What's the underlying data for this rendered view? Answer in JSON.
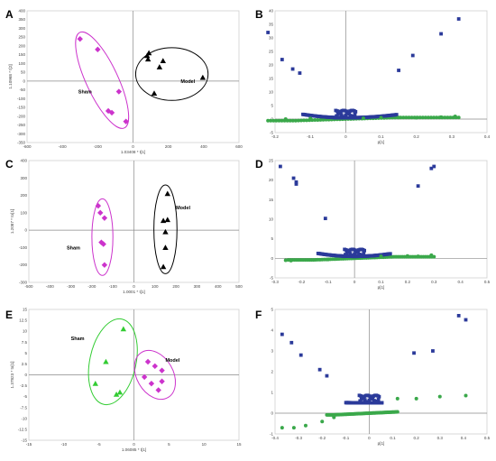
{
  "chart_data": [
    {
      "panel": "A",
      "type": "scatter",
      "xlabel": "1.03408 * t[1]",
      "ylabel": "1.10968 * t[2]",
      "xlim": [
        -600,
        600
      ],
      "ylim": [
        -350,
        400
      ],
      "xticks": [
        -600,
        -400,
        -200,
        0,
        200,
        400,
        600
      ],
      "yticks": [
        -350,
        -300,
        -250,
        -200,
        -150,
        -100,
        -50,
        0,
        50,
        100,
        150,
        200,
        250,
        300,
        350,
        400
      ],
      "groups": [
        {
          "label": "Sham",
          "marker": "diamond",
          "color": "#cc33cc",
          "points": [
            [
              -300,
              240
            ],
            [
              -200,
              180
            ],
            [
              -140,
              -170
            ],
            [
              -120,
              -180
            ],
            [
              -80,
              -60
            ],
            [
              -40,
              -230
            ]
          ],
          "label_at": [
            -310,
            -70
          ],
          "ellipse": {
            "cx": -175,
            "cy": 5,
            "rx": 90,
            "ry": 300,
            "rot": -25
          }
        },
        {
          "label": "Model",
          "marker": "triangle",
          "color": "#000000",
          "points": [
            [
              80,
              145
            ],
            [
              85,
              125
            ],
            [
              90,
              160
            ],
            [
              150,
              80
            ],
            [
              170,
              115
            ],
            [
              120,
              -70
            ],
            [
              395,
              20
            ]
          ],
          "label_at": [
            270,
            -10
          ],
          "ellipse": {
            "cx": 220,
            "cy": 40,
            "rx": 205,
            "ry": 150,
            "rot": 0
          }
        }
      ]
    },
    {
      "panel": "B",
      "type": "scatter",
      "xlabel": "p[1]",
      "ylabel": "",
      "xlim": [
        -0.2,
        0.4
      ],
      "ylim": [
        -5,
        40
      ],
      "xticks": [
        -0.2,
        -0.1,
        0,
        0.1,
        0.2,
        0.3,
        0.4
      ],
      "yticks": [
        -5,
        0,
        5,
        10,
        15,
        20,
        25,
        30,
        35,
        40
      ],
      "vshape": {
        "y0": 0.5,
        "left_k": 85,
        "right_k": 55,
        "max_left": -0.22,
        "max_right": 0.32
      },
      "series_extra": [
        {
          "name": "blue",
          "color": "#2b3a9a",
          "marker": "square",
          "points": [
            [
              -0.22,
              32
            ],
            [
              -0.18,
              22
            ],
            [
              -0.15,
              18.5
            ],
            [
              -0.13,
              17
            ],
            [
              0.15,
              18
            ],
            [
              0.19,
              23.5
            ],
            [
              0.27,
              31.5
            ],
            [
              0.32,
              37
            ]
          ]
        },
        {
          "name": "green",
          "color": "#3aa84a",
          "marker": "circle",
          "points": [
            [
              -0.17,
              0
            ],
            [
              -0.1,
              0.2
            ],
            [
              0.05,
              0.3
            ],
            [
              0.1,
              0.5
            ],
            [
              0.15,
              0.6
            ],
            [
              0.2,
              0.5
            ],
            [
              0.27,
              0.7
            ],
            [
              0.31,
              1
            ]
          ]
        }
      ]
    },
    {
      "panel": "C",
      "type": "scatter",
      "xlabel": "1.0001 * t[1]",
      "ylabel": "1.2087 * to[1]",
      "xlim": [
        -500,
        500
      ],
      "ylim": [
        -300,
        400
      ],
      "xticks": [
        -500,
        -400,
        -300,
        -200,
        -100,
        0,
        100,
        200,
        300,
        400,
        500
      ],
      "yticks": [
        -300,
        -200,
        -100,
        0,
        100,
        200,
        300,
        400
      ],
      "groups": [
        {
          "label": "Sham",
          "marker": "diamond",
          "color": "#cc33cc",
          "points": [
            [
              -170,
              140
            ],
            [
              -160,
              100
            ],
            [
              -140,
              70
            ],
            [
              -155,
              -70
            ],
            [
              -145,
              -80
            ],
            [
              -140,
              -200
            ]
          ],
          "label_at": [
            -320,
            -110
          ],
          "ellipse": {
            "cx": -150,
            "cy": -40,
            "rx": 50,
            "ry": 220,
            "rot": 0
          }
        },
        {
          "label": "Model",
          "marker": "triangle",
          "color": "#000000",
          "points": [
            [
              160,
              210
            ],
            [
              140,
              55
            ],
            [
              160,
              60
            ],
            [
              150,
              -10
            ],
            [
              150,
              -100
            ],
            [
              140,
              -210
            ]
          ],
          "label_at": [
            200,
            120
          ],
          "ellipse": {
            "cx": 150,
            "cy": 5,
            "rx": 55,
            "ry": 255,
            "rot": 0
          }
        }
      ]
    },
    {
      "panel": "D",
      "type": "scatter",
      "xlabel": "p[1]",
      "ylabel": "",
      "xlim": [
        -0.3,
        0.5
      ],
      "ylim": [
        -5,
        25
      ],
      "xticks": [
        -0.3,
        -0.2,
        -0.1,
        0,
        0.1,
        0.2,
        0.3,
        0.4,
        0.5
      ],
      "yticks": [
        -5,
        0,
        5,
        10,
        15,
        20,
        25
      ],
      "vshape": {
        "y0": 0.5,
        "left_k": 60,
        "right_k": 55,
        "max_left": -0.25,
        "max_right": 0.3
      },
      "series_extra": [
        {
          "name": "blue",
          "color": "#2b3a9a",
          "marker": "square",
          "points": [
            [
              -0.28,
              23.5
            ],
            [
              -0.23,
              20.5
            ],
            [
              -0.22,
              19
            ],
            [
              -0.22,
              19.5
            ],
            [
              -0.11,
              10.2
            ],
            [
              0.24,
              18.5
            ],
            [
              0.29,
              23
            ],
            [
              0.3,
              23.5
            ]
          ]
        },
        {
          "name": "green",
          "color": "#3aa84a",
          "marker": "circle",
          "points": [
            [
              -0.26,
              -0.5
            ],
            [
              -0.24,
              -0.6
            ],
            [
              -0.1,
              -0.3
            ],
            [
              0.1,
              0.5
            ],
            [
              0.2,
              0.6
            ],
            [
              0.24,
              0.5
            ],
            [
              0.29,
              0.8
            ]
          ]
        }
      ]
    },
    {
      "panel": "E",
      "type": "scatter",
      "xlabel": "1.06085 * t[1]",
      "ylabel": "1.37823 * to[1]",
      "xlim": [
        -15,
        15
      ],
      "ylim": [
        -15,
        15
      ],
      "xticks": [
        -15,
        -10,
        -5,
        0,
        5,
        10,
        15
      ],
      "yticks": [
        -15,
        -12.5,
        -10,
        -7.5,
        -5,
        -2.5,
        0,
        2.5,
        5,
        7.5,
        10,
        12.5,
        15
      ],
      "groups": [
        {
          "label": "Sham",
          "marker": "triangle",
          "color": "#33cc33",
          "points": [
            [
              -1.5,
              10.5
            ],
            [
              -4,
              3
            ],
            [
              -5.5,
              -2
            ],
            [
              -2,
              -4
            ],
            [
              -2.5,
              -4.5
            ]
          ],
          "label_at": [
            -9,
            8
          ],
          "ellipse": {
            "cx": -3,
            "cy": 3,
            "rx": 3.3,
            "ry": 10,
            "rot": 12
          }
        },
        {
          "label": "Model",
          "marker": "diamond",
          "color": "#cc33cc",
          "points": [
            [
              2,
              3
            ],
            [
              3,
              2
            ],
            [
              4,
              1
            ],
            [
              1.5,
              -0.5
            ],
            [
              2.5,
              -2
            ],
            [
              4,
              -1.5
            ],
            [
              3.5,
              -3.5
            ]
          ],
          "label_at": [
            4.5,
            3
          ],
          "ellipse": {
            "cx": 3,
            "cy": 0,
            "rx": 2.6,
            "ry": 6,
            "rot": -30
          }
        }
      ]
    },
    {
      "panel": "F",
      "type": "scatter",
      "xlabel": "p[1]",
      "ylabel": "",
      "xlim": [
        -0.4,
        0.5
      ],
      "ylim": [
        -1,
        5
      ],
      "xticks": [
        -0.4,
        -0.3,
        -0.2,
        -0.1,
        0,
        0.1,
        0.2,
        0.3,
        0.4,
        0.5
      ],
      "yticks": [
        -1,
        0,
        1,
        2,
        3,
        4,
        5
      ],
      "vshape": {
        "y0": 0.5,
        "left_k": 6,
        "right_k": 6,
        "max_left": -0.18,
        "max_right": 0.12
      },
      "series_extra": [
        {
          "name": "blue",
          "color": "#2b3a9a",
          "marker": "square",
          "points": [
            [
              -0.37,
              3.8
            ],
            [
              -0.33,
              3.4
            ],
            [
              -0.29,
              2.8
            ],
            [
              -0.21,
              2.1
            ],
            [
              -0.18,
              1.8
            ],
            [
              0.19,
              2.9
            ],
            [
              0.27,
              3
            ],
            [
              0.38,
              4.7
            ],
            [
              0.41,
              4.5
            ]
          ]
        },
        {
          "name": "green",
          "color": "#3aa84a",
          "marker": "circle",
          "points": [
            [
              -0.37,
              -0.7
            ],
            [
              -0.32,
              -0.7
            ],
            [
              -0.27,
              -0.6
            ],
            [
              -0.2,
              -0.4
            ],
            [
              -0.15,
              -0.2
            ],
            [
              0.12,
              0.7
            ],
            [
              0.2,
              0.7
            ],
            [
              0.3,
              0.8
            ],
            [
              0.41,
              0.85
            ]
          ]
        }
      ]
    }
  ]
}
